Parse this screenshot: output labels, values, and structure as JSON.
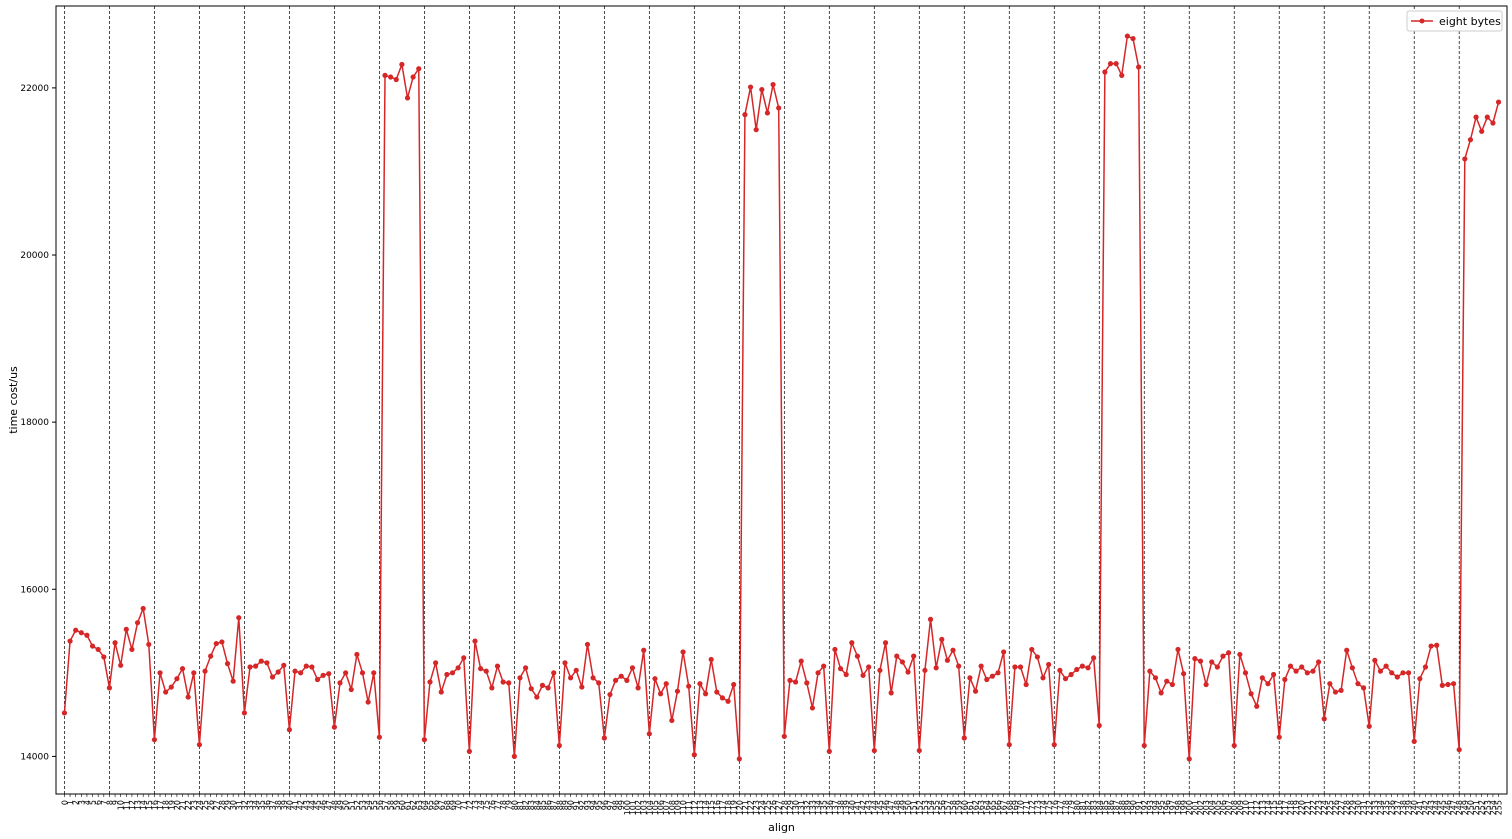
{
  "chart_data": {
    "type": "line",
    "xlabel": "align",
    "ylabel": "time cost/us",
    "xlim": [
      -1.5,
      256.5
    ],
    "ylim": [
      13550,
      22980
    ],
    "yticks": [
      14000,
      16000,
      18000,
      20000,
      22000
    ],
    "xticks_step": 1,
    "vlines_every": 8,
    "grid": false,
    "legend_position": "top-right",
    "line_color": "#d62728",
    "series": [
      {
        "name": "eight bytes",
        "values": [
          14520,
          15380,
          15510,
          15480,
          15450,
          15320,
          15280,
          15190,
          14820,
          15360,
          15090,
          15520,
          15280,
          15600,
          15770,
          15340,
          14200,
          15000,
          14770,
          14830,
          14930,
          15050,
          14710,
          15000,
          14140,
          15020,
          15200,
          15350,
          15370,
          15110,
          14900,
          15660,
          14520,
          15070,
          15080,
          15140,
          15120,
          14950,
          15010,
          15090,
          14320,
          15020,
          15000,
          15080,
          15070,
          14920,
          14970,
          14990,
          14350,
          14880,
          15000,
          14800,
          15220,
          15000,
          14650,
          15000,
          14230,
          22150,
          22130,
          22100,
          22280,
          21880,
          22130,
          22230,
          14200,
          14890,
          15120,
          14770,
          14980,
          15000,
          15060,
          15180,
          14060,
          15380,
          15050,
          15020,
          14820,
          15080,
          14890,
          14880,
          14000,
          14940,
          15060,
          14810,
          14710,
          14850,
          14820,
          15000,
          14130,
          15120,
          14940,
          15030,
          14830,
          15340,
          14940,
          14880,
          14220,
          14740,
          14910,
          14960,
          14910,
          15060,
          14820,
          15270,
          14270,
          14930,
          14750,
          14870,
          14430,
          14780,
          15250,
          14840,
          14020,
          14870,
          14750,
          15160,
          14770,
          14700,
          14660,
          14860,
          13970,
          21680,
          22010,
          21500,
          21980,
          21700,
          22040,
          21760,
          14240,
          14910,
          14890,
          15140,
          14880,
          14580,
          15000,
          15080,
          14060,
          15280,
          15050,
          14980,
          15360,
          15200,
          14970,
          15070,
          14070,
          15030,
          15360,
          14760,
          15200,
          15130,
          15010,
          15200,
          14070,
          15030,
          15640,
          15060,
          15400,
          15150,
          15270,
          15080,
          14220,
          14940,
          14780,
          15080,
          14920,
          14960,
          15000,
          15250,
          14140,
          15070,
          15070,
          14860,
          15280,
          15190,
          14940,
          15100,
          14140,
          15030,
          14930,
          14980,
          15040,
          15080,
          15060,
          15180,
          14370,
          22190,
          22290,
          22290,
          22150,
          22620,
          22590,
          22250,
          14130,
          15020,
          14940,
          14760,
          14900,
          14860,
          15280,
          14990,
          13970,
          15170,
          15140,
          14860,
          15130,
          15070,
          15200,
          15240,
          14130,
          15220,
          15000,
          14750,
          14600,
          14940,
          14870,
          14980,
          14230,
          14920,
          15080,
          15020,
          15070,
          15000,
          15020,
          15130,
          14450,
          14870,
          14770,
          14790,
          15270,
          15060,
          14870,
          14820,
          14360,
          15150,
          15020,
          15080,
          15000,
          14950,
          15000,
          15000,
          14180,
          14930,
          15070,
          15320,
          15330,
          14850,
          14860,
          14870,
          14080,
          21150,
          21380,
          21650,
          21480,
          21650,
          21580,
          21830
        ]
      }
    ]
  }
}
